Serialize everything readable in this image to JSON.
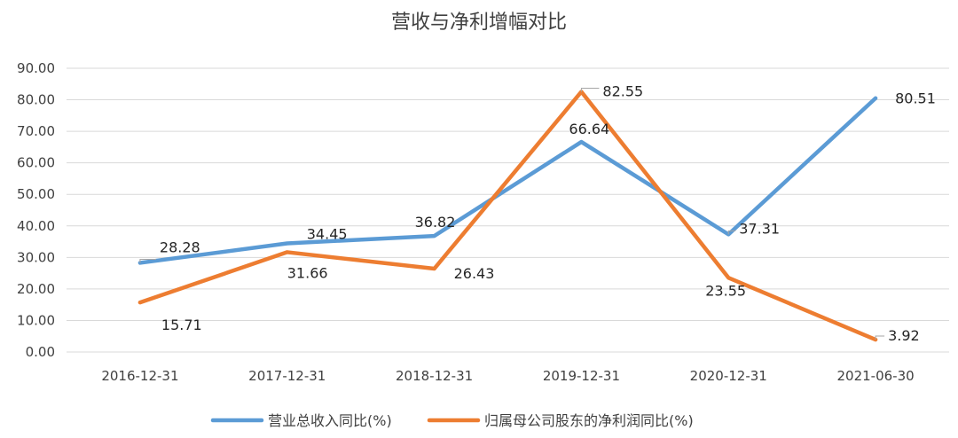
{
  "chart_data": {
    "type": "line",
    "title": "营收与净利增幅对比",
    "categories": [
      "2016-12-31",
      "2017-12-31",
      "2018-12-31",
      "2019-12-31",
      "2020-12-31",
      "2021-06-30"
    ],
    "ylim": [
      0,
      90
    ],
    "yticks": [
      "0.00",
      "10.00",
      "20.00",
      "30.00",
      "40.00",
      "50.00",
      "60.00",
      "70.00",
      "80.00",
      "90.00"
    ],
    "grid": true,
    "legend_position": "bottom",
    "series": [
      {
        "name": "营业总收入同比(%)",
        "color": "#5b9bd5",
        "values": [
          28.28,
          34.45,
          36.82,
          66.64,
          37.31,
          80.51
        ],
        "labels": [
          "28.28",
          "34.45",
          "36.82",
          "66.64",
          "37.31",
          "80.51"
        ]
      },
      {
        "name": "归属母公司股东的净利润同比(%)",
        "color": "#ed7d31",
        "values": [
          15.71,
          31.66,
          26.43,
          82.55,
          23.55,
          3.92
        ],
        "labels": [
          "15.71",
          "31.66",
          "26.43",
          "82.55",
          "23.55",
          "3.92"
        ]
      }
    ]
  }
}
